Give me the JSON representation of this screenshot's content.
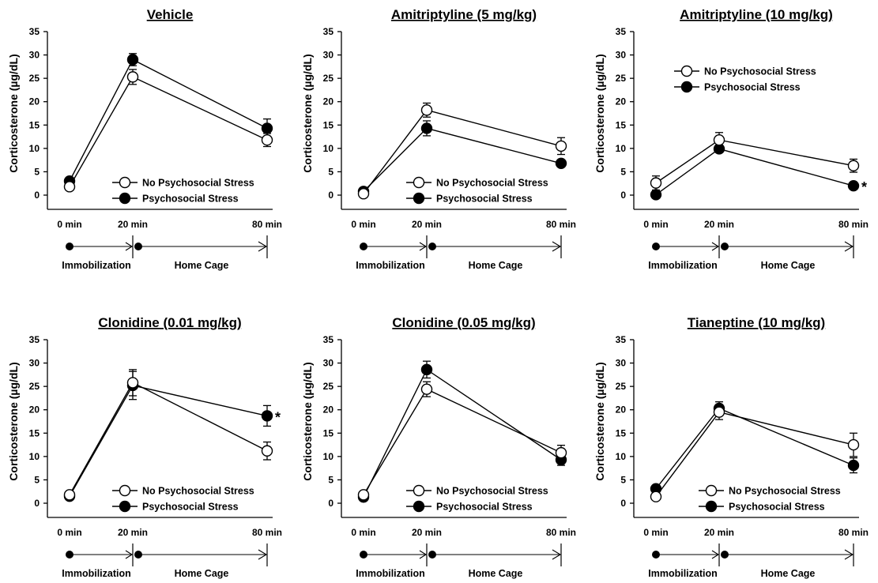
{
  "figure": {
    "y_axis_label": "Corticosterone (µg/dL)",
    "x_tick_labels": [
      "0 min",
      "20 min",
      "80 min"
    ],
    "timeline_labels": {
      "phase1": "Immobilization",
      "phase2": "Home Cage"
    },
    "legend": {
      "open": "No Psychosocial Stress",
      "filled": "Psychosocial Stress"
    },
    "significance_marker": "*"
  },
  "chart_data": [
    {
      "type": "line",
      "title": "Vehicle",
      "x": [
        "0 min",
        "20 min",
        "80 min"
      ],
      "ylim": [
        0,
        35
      ],
      "yticks": [
        0,
        5,
        10,
        15,
        20,
        25,
        30,
        35
      ],
      "ylabel": "Corticosterone (µg/dL)",
      "legend_position": "bottom-right",
      "series": [
        {
          "name": "No Psychosocial Stress",
          "marker": "open-circle",
          "values": [
            1.8,
            25.3,
            11.8
          ],
          "errors": [
            0.6,
            1.6,
            1.4
          ]
        },
        {
          "name": "Psychosocial Stress",
          "marker": "filled-circle",
          "values": [
            3.0,
            29.0,
            14.3
          ],
          "errors": [
            0.5,
            1.3,
            2.0
          ]
        }
      ],
      "significant": []
    },
    {
      "type": "line",
      "title": "Amitriptyline (5 mg/kg)",
      "x": [
        "0 min",
        "20 min",
        "80 min"
      ],
      "ylim": [
        0,
        35
      ],
      "yticks": [
        0,
        5,
        10,
        15,
        20,
        25,
        30,
        35
      ],
      "ylabel": "Corticosterone (µg/dL)",
      "legend_position": "bottom-right",
      "series": [
        {
          "name": "No Psychosocial Stress",
          "marker": "open-circle",
          "values": [
            0.3,
            18.2,
            10.5
          ],
          "errors": [
            0.5,
            1.5,
            1.8
          ]
        },
        {
          "name": "Psychosocial Stress",
          "marker": "filled-circle",
          "values": [
            0.8,
            14.3,
            6.8
          ],
          "errors": [
            0.4,
            1.6,
            0.6
          ]
        }
      ],
      "significant": []
    },
    {
      "type": "line",
      "title": "Amitriptyline (10 mg/kg)",
      "x": [
        "0 min",
        "20 min",
        "80 min"
      ],
      "ylim": [
        0,
        35
      ],
      "yticks": [
        0,
        5,
        10,
        15,
        20,
        25,
        30,
        35
      ],
      "ylabel": "Corticosterone (µg/dL)",
      "legend_position": "top",
      "series": [
        {
          "name": "No Psychosocial Stress",
          "marker": "open-circle",
          "values": [
            2.6,
            11.8,
            6.3
          ],
          "errors": [
            1.5,
            1.6,
            1.4
          ]
        },
        {
          "name": "Psychosocial Stress",
          "marker": "filled-circle",
          "values": [
            0.1,
            9.9,
            2.0
          ],
          "errors": [
            0.4,
            0.8,
            0.3
          ]
        }
      ],
      "significant": [
        {
          "series": 1,
          "index": 2
        }
      ]
    },
    {
      "type": "line",
      "title": "Clonidine (0.01 mg/kg)",
      "x": [
        "0 min",
        "20 min",
        "80 min"
      ],
      "ylim": [
        0,
        35
      ],
      "yticks": [
        0,
        5,
        10,
        15,
        20,
        25,
        30,
        35
      ],
      "ylabel": "Corticosterone (µg/dL)",
      "legend_position": "bottom-right",
      "series": [
        {
          "name": "No Psychosocial Stress",
          "marker": "open-circle",
          "values": [
            1.8,
            25.8,
            11.2
          ],
          "errors": [
            0.5,
            2.8,
            1.9
          ]
        },
        {
          "name": "Psychosocial Stress",
          "marker": "filled-circle",
          "values": [
            1.5,
            25.2,
            18.7
          ],
          "errors": [
            0.5,
            3.0,
            2.2
          ]
        }
      ],
      "significant": [
        {
          "series": 1,
          "index": 2
        }
      ]
    },
    {
      "type": "line",
      "title": "Clonidine (0.05 mg/kg)",
      "x": [
        "0 min",
        "20 min",
        "80 min"
      ],
      "ylim": [
        0,
        35
      ],
      "yticks": [
        0,
        5,
        10,
        15,
        20,
        25,
        30,
        35
      ],
      "ylabel": "Corticosterone (µg/dL)",
      "legend_position": "bottom-right",
      "series": [
        {
          "name": "No Psychosocial Stress",
          "marker": "open-circle",
          "values": [
            1.8,
            24.4,
            10.8
          ],
          "errors": [
            0.4,
            1.6,
            1.6
          ]
        },
        {
          "name": "Psychosocial Stress",
          "marker": "filled-circle",
          "values": [
            1.3,
            28.6,
            9.3
          ],
          "errors": [
            0.4,
            1.8,
            1.2
          ]
        }
      ],
      "significant": []
    },
    {
      "type": "line",
      "title": "Tianeptine (10 mg/kg)",
      "x": [
        "0 min",
        "20 min",
        "80 min"
      ],
      "ylim": [
        0,
        35
      ],
      "yticks": [
        0,
        5,
        10,
        15,
        20,
        25,
        30,
        35
      ],
      "ylabel": "Corticosterone (µg/dL)",
      "legend_position": "bottom-right",
      "series": [
        {
          "name": "No Psychosocial Stress",
          "marker": "open-circle",
          "values": [
            1.4,
            19.5,
            12.5
          ],
          "errors": [
            0.5,
            1.6,
            2.5
          ]
        },
        {
          "name": "Psychosocial Stress",
          "marker": "filled-circle",
          "values": [
            3.1,
            20.3,
            8.1
          ],
          "errors": [
            0.6,
            1.4,
            1.6
          ]
        }
      ],
      "significant": []
    }
  ]
}
